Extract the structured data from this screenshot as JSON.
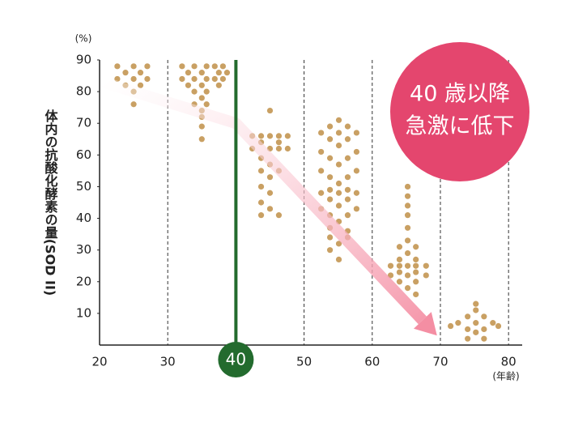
{
  "chart_data": {
    "type": "scatter",
    "y_unit": "(%)",
    "x_unit": "(年齢)",
    "y_label": "体内の抗酸化酵素の量(SOD II)",
    "annotation": [
      "40 歳以降",
      "急激に低下"
    ],
    "annotation_color": "#e4466e",
    "color": "#c9a063",
    "xlim": [
      20,
      82
    ],
    "xticks": [
      20,
      30,
      50,
      60,
      70,
      80
    ],
    "ylim": [
      0,
      90
    ],
    "yticks": [
      10,
      20,
      30,
      40,
      50,
      60,
      70,
      80,
      90
    ],
    "grid": true,
    "vline": {
      "x": 40,
      "color": "#236b2e"
    },
    "trend": {
      "x": [
        20.5,
        40,
        69.5
      ],
      "y": [
        83,
        70,
        3
      ],
      "color": "#f48ea3"
    },
    "x": [
      22.6,
      25,
      27,
      23.8,
      26,
      22.6,
      25,
      27,
      23.8,
      26,
      25,
      25,
      32.1,
      33.9,
      35.7,
      36.9,
      38.1,
      33,
      35,
      37.5,
      38.7,
      32.1,
      33.9,
      35.7,
      36.9,
      38.1,
      33,
      35,
      37.5,
      33.9,
      35.7,
      35,
      33.9,
      35.7,
      35,
      35,
      35,
      35,
      45,
      42.4,
      43.7,
      45,
      46.3,
      47.6,
      43.7,
      46.3,
      42.4,
      45,
      46.3,
      47.6,
      43.7,
      45,
      43.7,
      46.3,
      45,
      43.7,
      45,
      43.7,
      45,
      43.7,
      46.3,
      55.1,
      53.8,
      56.4,
      52.5,
      55.1,
      57.7,
      53.8,
      56.4,
      55.1,
      52.5,
      57.7,
      53.8,
      56.4,
      55.1,
      52.5,
      57.7,
      53.8,
      56.4,
      55.1,
      53.8,
      56.4,
      52.5,
      55.1,
      57.7,
      53.8,
      56.4,
      55.1,
      52.5,
      57.7,
      53.8,
      56.4,
      55.1,
      53.8,
      56.4,
      53.8,
      56.4,
      55.1,
      53.8,
      55.1,
      65.2,
      65.2,
      65.2,
      65.2,
      65.2,
      65.2,
      64,
      66.4,
      65.2,
      64,
      66.4,
      62.7,
      64,
      65.2,
      66.4,
      67.9,
      64,
      66.4,
      62.7,
      65.2,
      67.9,
      64,
      66.4,
      65.2,
      66.4,
      75.2,
      75.2,
      74,
      76.4,
      72.6,
      75.2,
      77.7,
      74,
      76.4,
      75.2,
      74,
      76.4,
      78.5,
      71.5
    ],
    "values": [
      88,
      88,
      88,
      86,
      86,
      84,
      84,
      84,
      82,
      82,
      80,
      76,
      88,
      88,
      88,
      88,
      88,
      86,
      86,
      86,
      86,
      84,
      84,
      84,
      84,
      84,
      82,
      82,
      82,
      80,
      80,
      78,
      76,
      76,
      74,
      72,
      69,
      65,
      74,
      66,
      66,
      66,
      66,
      66,
      64,
      64,
      62,
      62,
      62,
      62,
      59,
      57,
      55,
      55,
      53,
      50,
      48,
      45,
      43,
      41,
      41,
      71,
      69,
      69,
      67,
      67,
      67,
      65,
      65,
      63,
      61,
      61,
      59,
      59,
      57,
      55,
      55,
      53,
      53,
      51,
      49,
      49,
      48,
      48,
      48,
      46,
      46,
      44,
      43,
      43,
      41,
      41,
      39,
      37,
      36,
      34,
      34,
      32,
      30,
      27,
      50,
      47,
      44,
      41,
      37,
      33,
      31,
      31,
      29,
      27,
      27,
      25,
      25,
      25,
      25,
      25,
      23,
      23,
      22,
      22,
      22,
      20,
      20,
      18,
      16,
      13,
      11,
      9,
      9,
      7,
      7,
      7,
      5,
      5,
      4,
      2,
      2,
      6,
      6
    ]
  }
}
